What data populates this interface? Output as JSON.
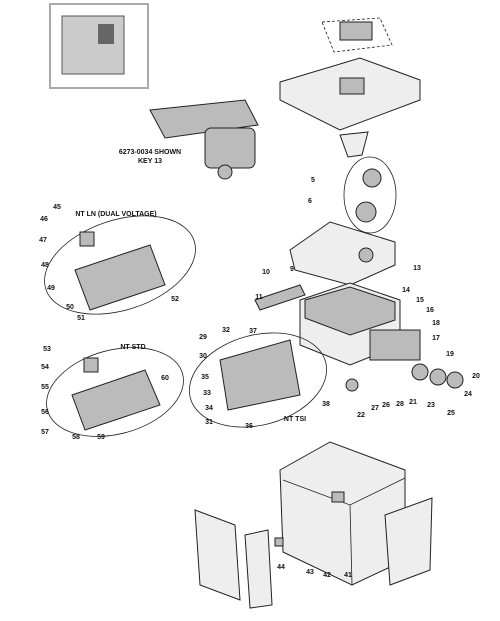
{
  "header": {
    "model_note": "6273-0034 SHOWN",
    "key_note": "KEY 13"
  },
  "groups": [
    {
      "title": "NT LN (DUAL VOLTAGE)"
    },
    {
      "title": "NT STD"
    },
    {
      "title": "NT TSI"
    }
  ],
  "part_labels": [
    "45",
    "46",
    "47",
    "48",
    "49",
    "50",
    "51",
    "52",
    "53",
    "54",
    "55",
    "56",
    "57",
    "58",
    "59",
    "60",
    "29",
    "30",
    "35",
    "33",
    "34",
    "31",
    "36",
    "32",
    "37",
    "38",
    "5",
    "6",
    "10",
    "9",
    "11",
    "13",
    "14",
    "15",
    "16",
    "17",
    "18",
    "19",
    "20",
    "22",
    "27",
    "26",
    "28",
    "21",
    "23",
    "24",
    "25",
    "44",
    "43",
    "42",
    "41"
  ]
}
